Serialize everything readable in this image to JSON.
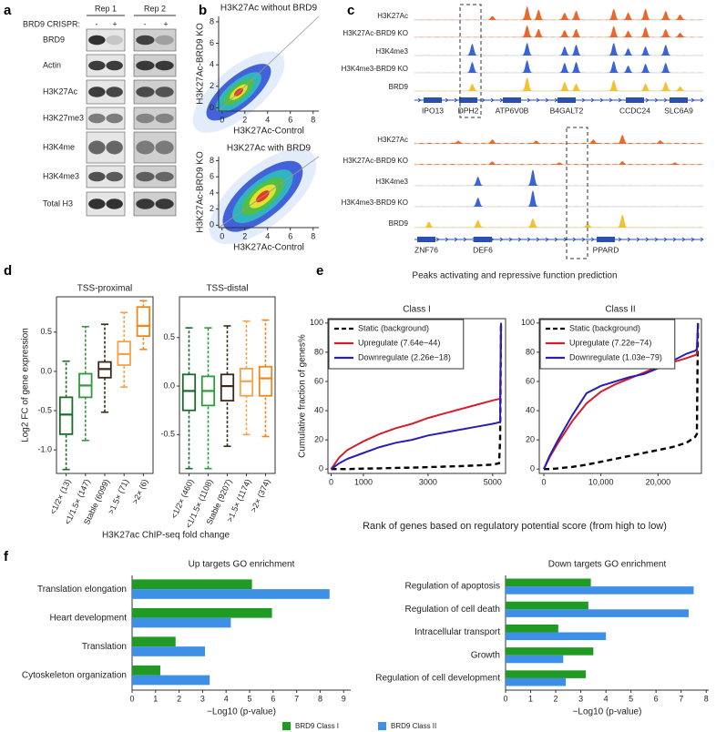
{
  "panel_labels": [
    "a",
    "b",
    "c",
    "d",
    "e",
    "f"
  ],
  "blot": {
    "rep_labels": [
      "Rep 1",
      "Rep 2"
    ],
    "crispr_label": "BRD9 CRISPR:",
    "crispr_signs": [
      "-",
      "+",
      "-",
      "+"
    ],
    "rows": [
      "BRD9",
      "Actin",
      "H3K27Ac",
      "H3K27me3",
      "H3K4me",
      "H3K4me3",
      "Total H3"
    ]
  },
  "tracks": {
    "loci": [
      {
        "tracks": [
          "H3K27Ac",
          "H3K27Ac-BRD9 KO",
          "H3K4me3",
          "H3K4me3-BRD9 KO",
          "BRD9"
        ],
        "genes": [
          "IPO13",
          "DPH2",
          "ATP6V0B",
          "B4GALT2",
          "CCDC24",
          "SLC6A9"
        ]
      },
      {
        "tracks": [
          "H3K27Ac",
          "H3K27Ac-BRD9 KO",
          "H3K4me3",
          "H3K4me3-BRD9 KO",
          "BRD9"
        ],
        "genes": [
          "ZNF76",
          "DEF6",
          "PPARD"
        ]
      }
    ]
  },
  "chart_data": [
    {
      "type": "density",
      "title": "H3K27Ac without BRD9",
      "xlabel": "H3K27Ac-Control",
      "ylabel": "H3K27Ac-BRD9 KO",
      "xlim": [
        -0.3,
        8.5
      ],
      "ylim": [
        -0.3,
        8.5
      ],
      "xticks": [
        0,
        2,
        4,
        6,
        8
      ],
      "yticks": [
        0,
        2,
        4,
        6,
        8
      ]
    },
    {
      "type": "density",
      "title": "H3K27Ac with BRD9",
      "xlabel": "H3K27Ac-Control",
      "ylabel": "H3K27Ac-BRD9 KO",
      "xlim": [
        -0.3,
        8.5
      ],
      "ylim": [
        -0.3,
        8.5
      ],
      "xticks": [
        0,
        2,
        4,
        6,
        8
      ],
      "yticks": [
        0,
        2,
        4,
        6,
        8
      ]
    },
    {
      "type": "box",
      "title": "TSS-proximal",
      "ylabel": "Log2 FC of gene expression",
      "xlabel": "H3K27ac ChIP-seq fold change",
      "categories": [
        "<1/2× (13)",
        "<1/1.5× (147)",
        "Stable (6099)",
        ">1.5× (71)",
        ">2× (6)"
      ],
      "colors": [
        "#1c6b2c",
        "#2f9a3e",
        "#3b2a1c",
        "#f2a24a",
        "#f0861c"
      ],
      "boxes": [
        [
          -1.25,
          -0.8,
          -0.55,
          -0.33,
          0.13
        ],
        [
          -0.88,
          -0.33,
          -0.18,
          -0.03,
          0.57
        ],
        [
          -0.52,
          -0.08,
          0.03,
          0.12,
          0.6
        ],
        [
          -0.2,
          0.08,
          0.22,
          0.38,
          0.75
        ],
        [
          0.28,
          0.45,
          0.58,
          0.82,
          0.9
        ]
      ],
      "ylim": [
        -1.3,
        0.95
      ],
      "yticks": [
        {
          "value": -1,
          "label": "-1.0"
        },
        -0.5,
        {
          "value": 0,
          "label": "0.0"
        },
        0.5
      ]
    },
    {
      "type": "box",
      "title": "TSS-distal",
      "categories": [
        "<1/2× (460)",
        "<1/1.5× (1108)",
        "Stable (9207)",
        ">1.5× (1174)",
        ">2× (374)"
      ],
      "colors": [
        "#1c6b2c",
        "#2f9a3e",
        "#3b2a1c",
        "#f2a24a",
        "#f0861c"
      ],
      "boxes": [
        [
          -0.85,
          -0.25,
          -0.05,
          0.12,
          0.6
        ],
        [
          -0.85,
          -0.2,
          -0.05,
          0.1,
          0.6
        ],
        [
          -0.62,
          -0.15,
          0,
          0.12,
          0.62
        ],
        [
          -0.5,
          -0.1,
          0.05,
          0.18,
          0.67
        ],
        [
          -0.52,
          -0.1,
          0.08,
          0.2,
          0.68
        ]
      ],
      "ylim": [
        -0.9,
        0.92
      ],
      "yticks": [
        -0.5,
        {
          "value": 0,
          "label": "0.0"
        },
        0.5
      ]
    },
    {
      "type": "line",
      "suptitle": "Peaks activating and repressive function prediction",
      "title": "Class I",
      "ylabel": "Cumulative fraction of genes%",
      "xlabel": "Rank of genes based on regulatory potential score (from high to low)",
      "x": [
        0,
        250,
        500,
        1000,
        1500,
        2000,
        2500,
        3000,
        3500,
        4000,
        4500,
        5000,
        5200,
        5230,
        5260
      ],
      "series": [
        {
          "name": "Static (background)",
          "color": "#000000",
          "style": "dashed",
          "values": [
            0,
            0,
            0,
            0.3,
            0.5,
            0.8,
            1,
            1.3,
            1.7,
            2,
            2.5,
            3,
            4,
            20,
            100
          ]
        },
        {
          "name": "Upregulate (7.64e−44)",
          "color": "#d0202e",
          "style": "solid",
          "values": [
            0,
            8,
            13,
            19,
            24,
            28,
            31,
            35,
            38,
            41,
            44,
            47,
            48,
            48,
            100
          ]
        },
        {
          "name": "Downregulate (2.26e−18)",
          "color": "#2a1fb0",
          "style": "solid",
          "values": [
            0,
            4,
            7,
            11,
            15,
            18,
            20,
            23,
            25,
            27,
            29,
            31,
            32,
            32,
            100
          ]
        }
      ],
      "xlim": [
        -100,
        5400
      ],
      "ylim": [
        -3,
        103
      ],
      "xticks": [
        0,
        1000,
        3000,
        5000
      ],
      "yticks": [
        0,
        20,
        40,
        60,
        80,
        100
      ]
    },
    {
      "type": "line",
      "title": "Class II",
      "x": [
        0,
        1000,
        2500,
        5000,
        7500,
        10000,
        12500,
        15000,
        17500,
        20000,
        22500,
        25000,
        26500,
        26800,
        27000
      ],
      "series": [
        {
          "name": "Static (background)",
          "color": "#000000",
          "style": "dashed",
          "values": [
            0,
            0,
            0.5,
            1.5,
            3,
            5,
            7,
            9,
            11,
            13,
            15,
            18,
            22,
            24,
            100
          ]
        },
        {
          "name": "Upregulate (7.22e−74)",
          "color": "#d0202e",
          "style": "solid",
          "values": [
            0,
            8,
            18,
            33,
            45,
            53,
            58,
            62,
            66,
            70,
            73,
            76,
            78,
            79,
            100
          ]
        },
        {
          "name": "Downregulate (1.03e−79)",
          "color": "#2a1fb0",
          "style": "solid",
          "values": [
            0,
            9,
            20,
            37,
            52,
            57,
            60,
            63,
            65,
            69,
            74,
            79,
            81,
            82,
            100
          ]
        }
      ],
      "xlim": [
        -800,
        27600
      ],
      "ylim": [
        -3,
        103
      ],
      "xticks": [
        0,
        {
          "value": 10000,
          "label": "10,000"
        },
        {
          "value": 20000,
          "label": "20,000"
        }
      ],
      "yticks": [
        0,
        20,
        40,
        60,
        80,
        100
      ]
    },
    {
      "type": "hbar",
      "title": "Up targets GO enrichment",
      "xlabel": "−Log10 (p-value)",
      "categories": [
        "Translation elongation",
        "Heart development",
        "Translation",
        "Cytoskeleton organization"
      ],
      "series": [
        {
          "name": "BRD9 Class I",
          "color": "#1f9a22",
          "values": [
            5.1,
            5.95,
            1.85,
            1.2
          ]
        },
        {
          "name": "BRD9 Class II",
          "color": "#3e8fe6",
          "values": [
            8.4,
            4.2,
            3.1,
            3.3
          ]
        }
      ],
      "xlim": [
        0,
        9.3
      ],
      "xticks": [
        0,
        1,
        2,
        3,
        4,
        5,
        6,
        7,
        8,
        9
      ]
    },
    {
      "type": "hbar",
      "title": "Down targets GO enrichment",
      "xlabel": "−Log10 (p-value)",
      "categories": [
        "Regulation of apoptosis",
        "Regulation of cell death",
        "Intracellular transport",
        "Growth",
        "Regulation of cell development"
      ],
      "series": [
        {
          "color": "#1f9a22",
          "values": [
            3.4,
            3.3,
            2.1,
            3.5,
            3.2
          ]
        },
        {
          "color": "#3e8fe6",
          "values": [
            7.5,
            7.3,
            4,
            2.3,
            2.4
          ]
        }
      ],
      "xlim": [
        0,
        8.1
      ],
      "xticks": [
        0,
        1,
        2,
        3,
        4,
        5,
        6,
        7,
        8
      ]
    }
  ]
}
